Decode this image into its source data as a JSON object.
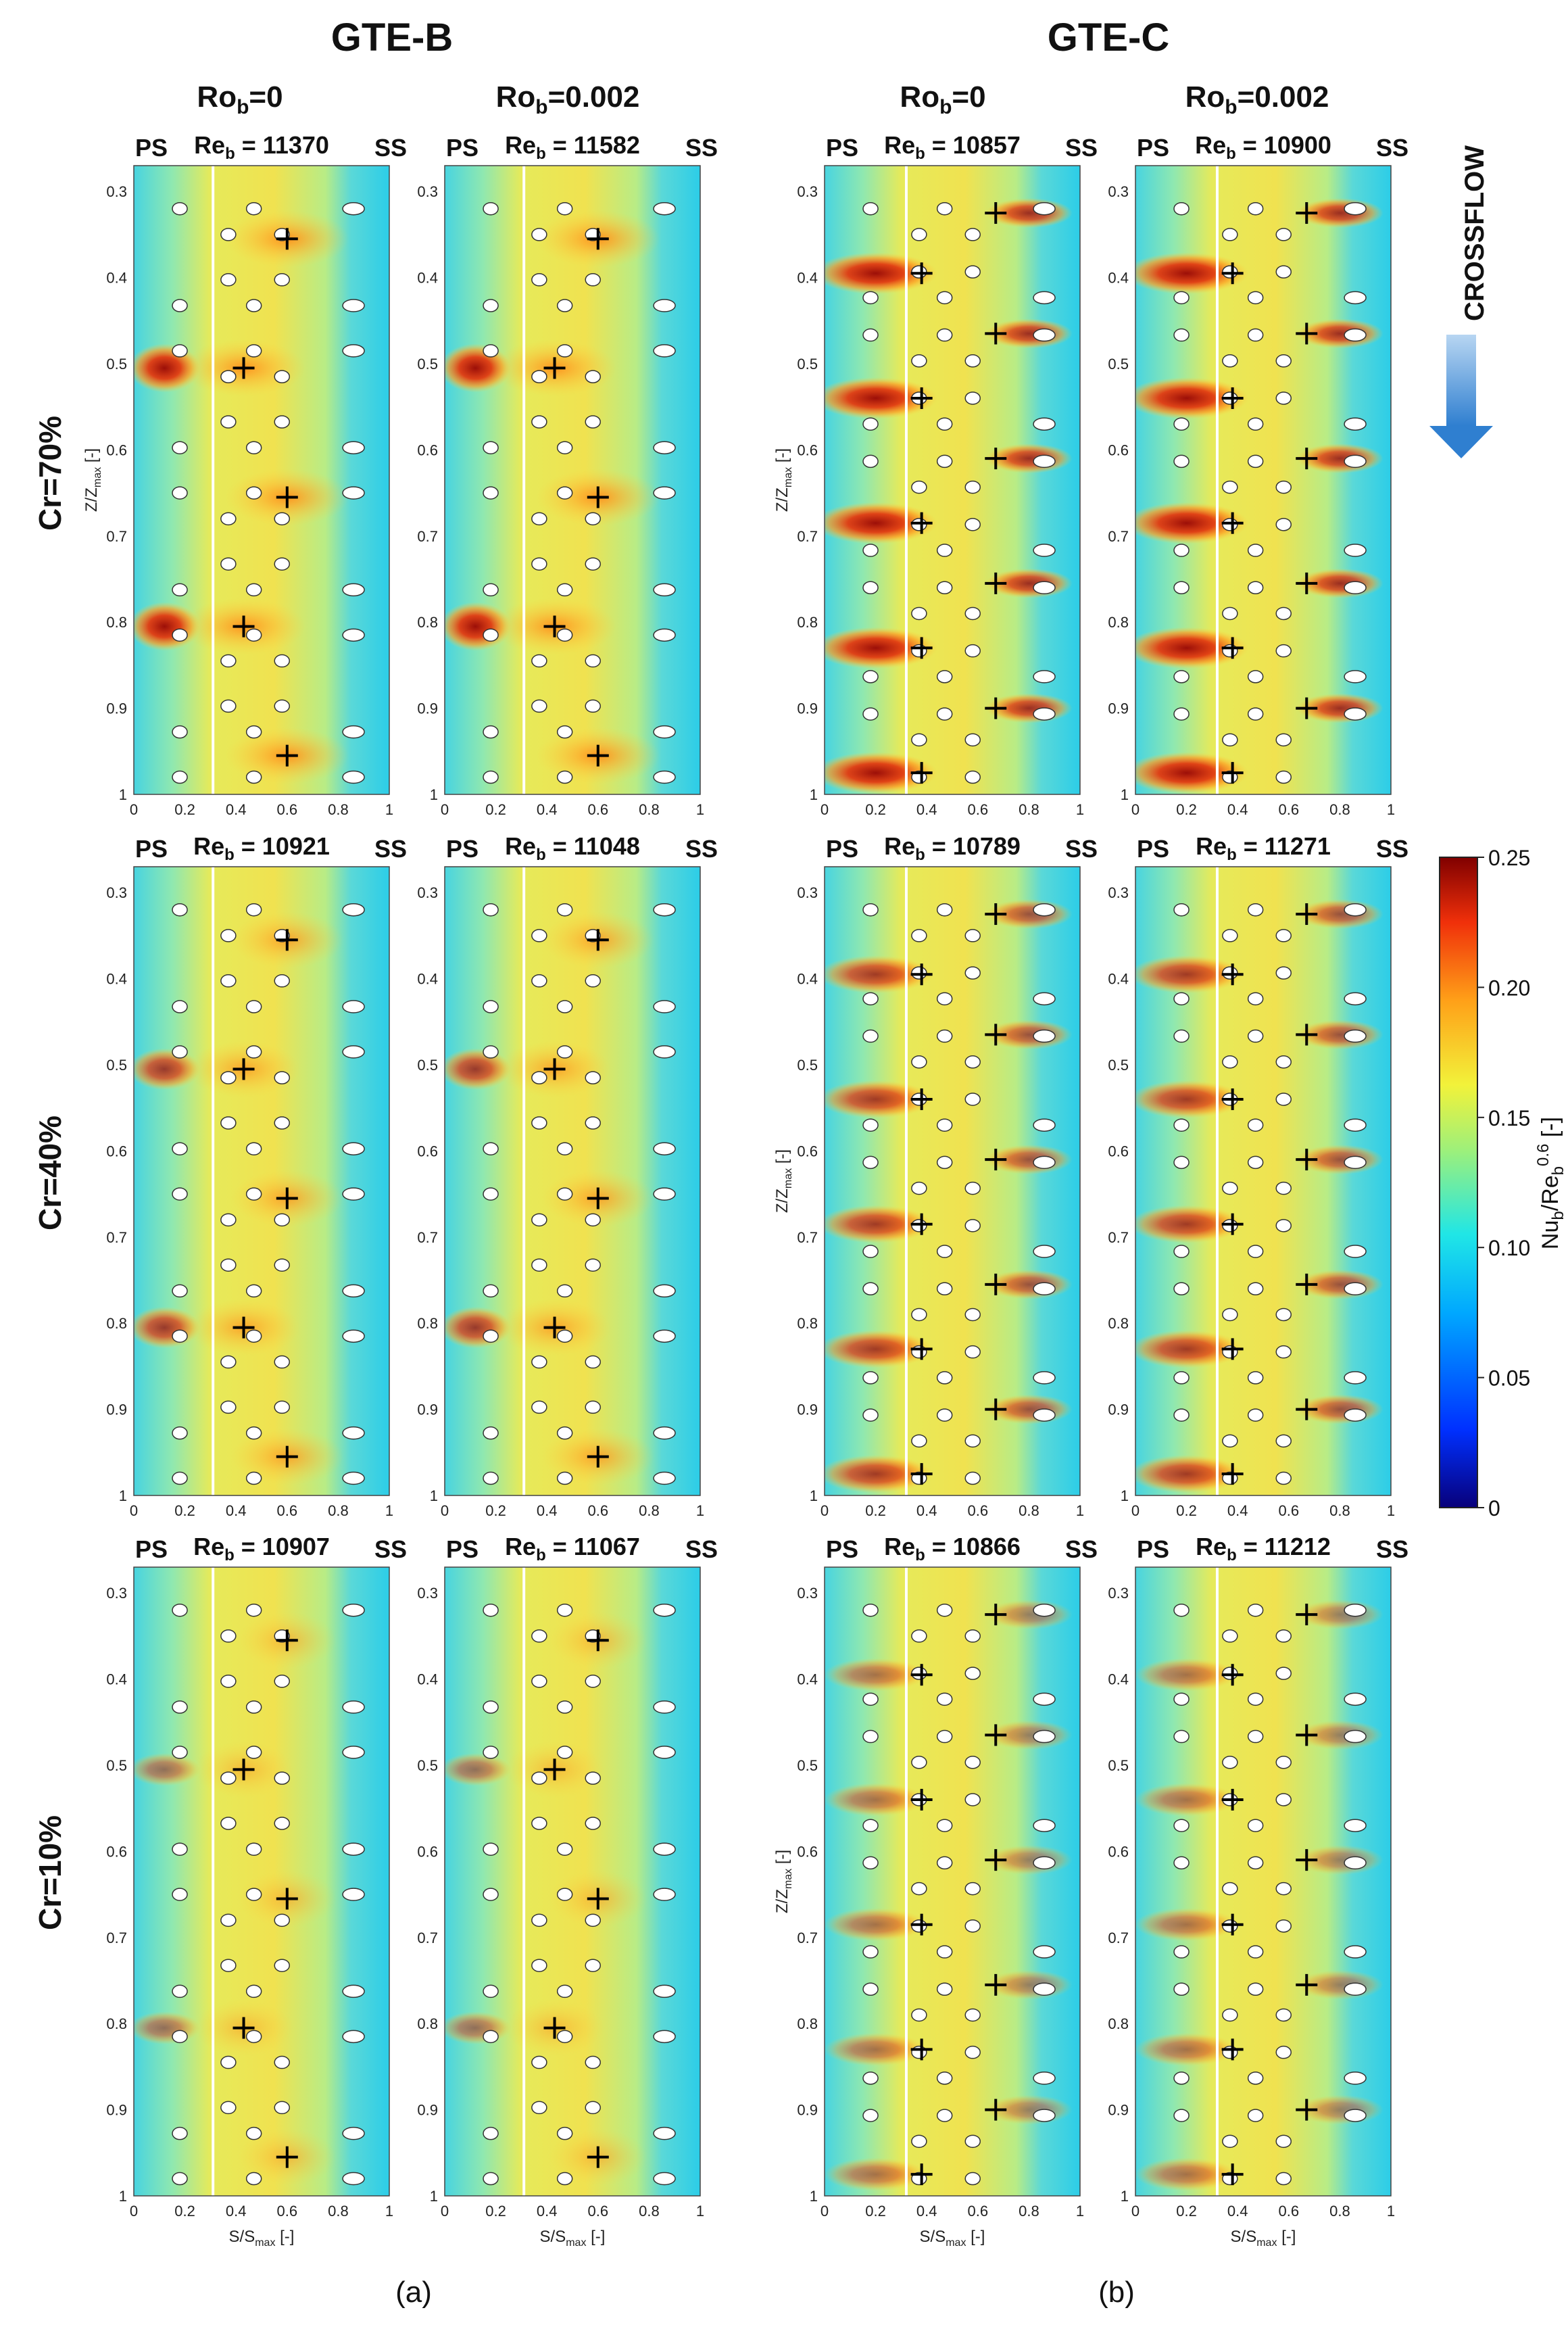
{
  "figure": {
    "group_titles": [
      "GTE-B",
      "GTE-C"
    ],
    "rotation_label": "Ro",
    "rotation_subscript": "b",
    "rotation_values": [
      "=0",
      "=0.002",
      "=0",
      "=0.002"
    ],
    "row_labels": [
      "Cr=70%",
      "Cr=40%",
      "Cr=10%"
    ],
    "side_left": "PS",
    "side_right": "SS",
    "panel_caption_a": "(a)",
    "panel_caption_b": "(b)",
    "crossflow_label": "CROSSFLOW",
    "re_label": "Re",
    "re_subscript": "b",
    "colors": {
      "cold": "#1fd0ea",
      "mid": "#e8e840",
      "hot": "#b0150c",
      "arrow": "#3a86d2"
    }
  },
  "chart_data": {
    "type": "heatmap",
    "description_axes": true,
    "x_axis": {
      "label": "S/S",
      "label_sub": "max",
      "label_unit": " [-]",
      "range": [
        0,
        1
      ],
      "ticks": [
        "0",
        "0.2",
        "0.4",
        "0.6",
        "0.8",
        "1"
      ]
    },
    "y_axis": {
      "label": "Z/Z",
      "label_sub": "max",
      "label_unit": " [-]",
      "range": [
        0.27,
        1.0
      ],
      "ticks": [
        "0.3",
        "0.4",
        "0.5",
        "0.6",
        "0.7",
        "0.8",
        "0.9",
        "1"
      ],
      "inverted": true
    },
    "colorbar": {
      "label_main": "Nu",
      "label_sub": "b",
      "label_mid": "/Re",
      "label_sub2": "b",
      "label_sup": "0.6",
      "label_unit": " [-]",
      "range": [
        0,
        0.25
      ],
      "ticks": [
        "0",
        "0.05",
        "0.10",
        "0.15",
        "0.20",
        "0.25"
      ]
    },
    "panels": [
      {
        "group": "GTE-B",
        "rotation": "Ro_b=0",
        "cr": "70%",
        "re": "11370"
      },
      {
        "group": "GTE-B",
        "rotation": "Ro_b=0.002",
        "cr": "70%",
        "re": "11582"
      },
      {
        "group": "GTE-C",
        "rotation": "Ro_b=0",
        "cr": "70%",
        "re": "10857"
      },
      {
        "group": "GTE-C",
        "rotation": "Ro_b=0.002",
        "cr": "70%",
        "re": "10900"
      },
      {
        "group": "GTE-B",
        "rotation": "Ro_b=0",
        "cr": "40%",
        "re": "10921"
      },
      {
        "group": "GTE-B",
        "rotation": "Ro_b=0.002",
        "cr": "40%",
        "re": "11048"
      },
      {
        "group": "GTE-C",
        "rotation": "Ro_b=0",
        "cr": "40%",
        "re": "10789"
      },
      {
        "group": "GTE-C",
        "rotation": "Ro_b=0.002",
        "cr": "40%",
        "re": "11271"
      },
      {
        "group": "GTE-B",
        "rotation": "Ro_b=0",
        "cr": "10%",
        "re": "10907"
      },
      {
        "group": "GTE-B",
        "rotation": "Ro_b=0.002",
        "cr": "10%",
        "re": "11067"
      },
      {
        "group": "GTE-C",
        "rotation": "Ro_b=0",
        "cr": "10%",
        "re": "10866"
      },
      {
        "group": "GTE-C",
        "rotation": "Ro_b=0.002",
        "cr": "10%",
        "re": "11212"
      }
    ],
    "gte_b_crosses": [
      [
        0.6,
        0.355
      ],
      [
        0.43,
        0.505
      ],
      [
        0.6,
        0.655
      ],
      [
        0.43,
        0.805
      ],
      [
        0.6,
        0.955
      ]
    ],
    "gte_c_crosses": [
      [
        0.67,
        0.325
      ],
      [
        0.38,
        0.395
      ],
      [
        0.67,
        0.465
      ],
      [
        0.38,
        0.54
      ],
      [
        0.67,
        0.61
      ],
      [
        0.38,
        0.685
      ],
      [
        0.67,
        0.755
      ],
      [
        0.38,
        0.83
      ],
      [
        0.67,
        0.9
      ],
      [
        0.38,
        0.975
      ]
    ],
    "hot_spot_intensity": {
      "Cr=70%": 1.0,
      "Cr=40%": 0.8,
      "Cr=10%": 0.55
    }
  }
}
